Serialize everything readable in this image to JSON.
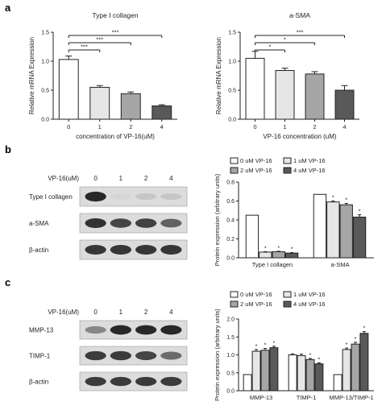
{
  "panel_labels": {
    "a": "a",
    "b": "b",
    "c": "c"
  },
  "chart_data": [
    {
      "type": "bar",
      "title": "Type I collagen",
      "xlabel": "concentration of VP-16(uM)",
      "ylabel": "Relative mRNA Expression",
      "categories": [
        "0",
        "1",
        "2",
        "4"
      ],
      "values": [
        1.03,
        0.55,
        0.44,
        0.23
      ],
      "errors": [
        0.06,
        0.03,
        0.03,
        0.02
      ],
      "ylim": [
        0,
        1.5
      ],
      "yticks": [
        "0.0",
        "0.5",
        "1.0",
        "1.5"
      ],
      "significance": [
        {
          "from": "0",
          "to": "1",
          "label": "***"
        },
        {
          "from": "0",
          "to": "2",
          "label": "***"
        },
        {
          "from": "0",
          "to": "4",
          "label": "***"
        }
      ]
    },
    {
      "type": "bar",
      "title": "a-SMA",
      "xlabel": "VP-16 concentration (uM)",
      "ylabel": "Relative mRNA Expression",
      "categories": [
        "0",
        "1",
        "2",
        "4"
      ],
      "values": [
        1.05,
        0.84,
        0.78,
        0.5
      ],
      "errors": [
        0.12,
        0.04,
        0.04,
        0.08
      ],
      "ylim": [
        0,
        1.5
      ],
      "yticks": [
        "0.0",
        "0.5",
        "1.0",
        "1.5"
      ],
      "significance": [
        {
          "from": "0",
          "to": "1",
          "label": "*"
        },
        {
          "from": "0",
          "to": "2",
          "label": "*"
        },
        {
          "from": "0",
          "to": "4",
          "label": "***"
        }
      ]
    },
    {
      "type": "bar",
      "ylabel": "Protein expression (arbitrary units)",
      "categories": [
        "Type I collagen",
        "a-SMA"
      ],
      "series": [
        {
          "name": "0 uM VP-16",
          "values": [
            0.45,
            0.67
          ],
          "errors": [
            0,
            0
          ]
        },
        {
          "name": "1 uM VP-16",
          "values": [
            0.06,
            0.59
          ],
          "errors": [
            0.005,
            0.01
          ]
        },
        {
          "name": "2 uM VP-16",
          "values": [
            0.065,
            0.56
          ],
          "errors": [
            0.005,
            0.015
          ]
        },
        {
          "name": "4 uM VP-16",
          "values": [
            0.05,
            0.43
          ],
          "errors": [
            0.005,
            0.025
          ]
        }
      ],
      "stars": [
        [
          false,
          true,
          true,
          true
        ],
        [
          false,
          true,
          true,
          true
        ]
      ],
      "star_label": "*",
      "ylim": [
        0,
        0.8
      ],
      "yticks": [
        "0.0",
        "0.2",
        "0.4",
        "0.6",
        "0.8"
      ],
      "legend": "top"
    },
    {
      "type": "bar",
      "ylabel": "Protein expression (arbitrary units)",
      "categories": [
        "MMP-13",
        "TIMP-1",
        "MMP-13/TIMP-1"
      ],
      "series": [
        {
          "name": "0 uM VP-16",
          "values": [
            0.45,
            1.0,
            0.45
          ],
          "errors": [
            0,
            0.03,
            0
          ]
        },
        {
          "name": "1 uM VP-16",
          "values": [
            1.1,
            0.98,
            1.15
          ],
          "errors": [
            0.05,
            0.04,
            0.04
          ]
        },
        {
          "name": "2 uM VP-16",
          "values": [
            1.13,
            0.87,
            1.3
          ],
          "errors": [
            0.05,
            0.03,
            0.05
          ]
        },
        {
          "name": "4 uM VP-16",
          "values": [
            1.2,
            0.75,
            1.6
          ],
          "errors": [
            0.04,
            0.03,
            0.05
          ]
        }
      ],
      "stars": [
        [
          false,
          true,
          true,
          true
        ],
        [
          false,
          false,
          true,
          true
        ],
        [
          false,
          true,
          true,
          true
        ]
      ],
      "star_label": "*",
      "ylim": [
        0,
        2.0
      ],
      "yticks": [
        "0.0",
        "0.5",
        "1.0",
        "1.5",
        "2.0"
      ],
      "legend": "top"
    }
  ],
  "blot_b": {
    "header_label": "VP-16(uM)",
    "lanes": [
      "0",
      "1",
      "2",
      "4"
    ],
    "rows": [
      {
        "label": "Type I collagen",
        "bands": [
          0.95,
          0.04,
          0.12,
          0.12
        ]
      },
      {
        "label": "a-SMA",
        "bands": [
          0.9,
          0.8,
          0.82,
          0.65
        ]
      },
      {
        "label": "β-actin",
        "bands": [
          0.88,
          0.88,
          0.88,
          0.88
        ]
      }
    ]
  },
  "blot_c": {
    "header_label": "VP-16(uM)",
    "lanes": [
      "0",
      "1",
      "2",
      "4"
    ],
    "rows": [
      {
        "label": "MMP-13",
        "bands": [
          0.45,
          0.95,
          0.95,
          0.95
        ]
      },
      {
        "label": "TIMP-1",
        "bands": [
          0.85,
          0.85,
          0.8,
          0.6
        ]
      },
      {
        "label": "β-actin",
        "bands": [
          0.85,
          0.85,
          0.85,
          0.85
        ]
      }
    ]
  },
  "colors": {
    "series": [
      "#ffffff",
      "#e6e6e6",
      "#a6a6a6",
      "#595959"
    ],
    "axis": "#222222"
  }
}
